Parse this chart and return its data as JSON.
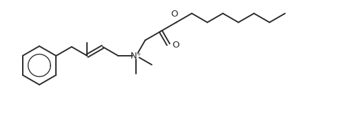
{
  "background_color": "#ffffff",
  "line_color": "#2a2a2a",
  "line_width": 1.4,
  "font_size": 9.5,
  "figsize": [
    5.23,
    1.67
  ],
  "dpi": 100,
  "xlim": [
    0,
    523
  ],
  "ylim": [
    0,
    167
  ]
}
